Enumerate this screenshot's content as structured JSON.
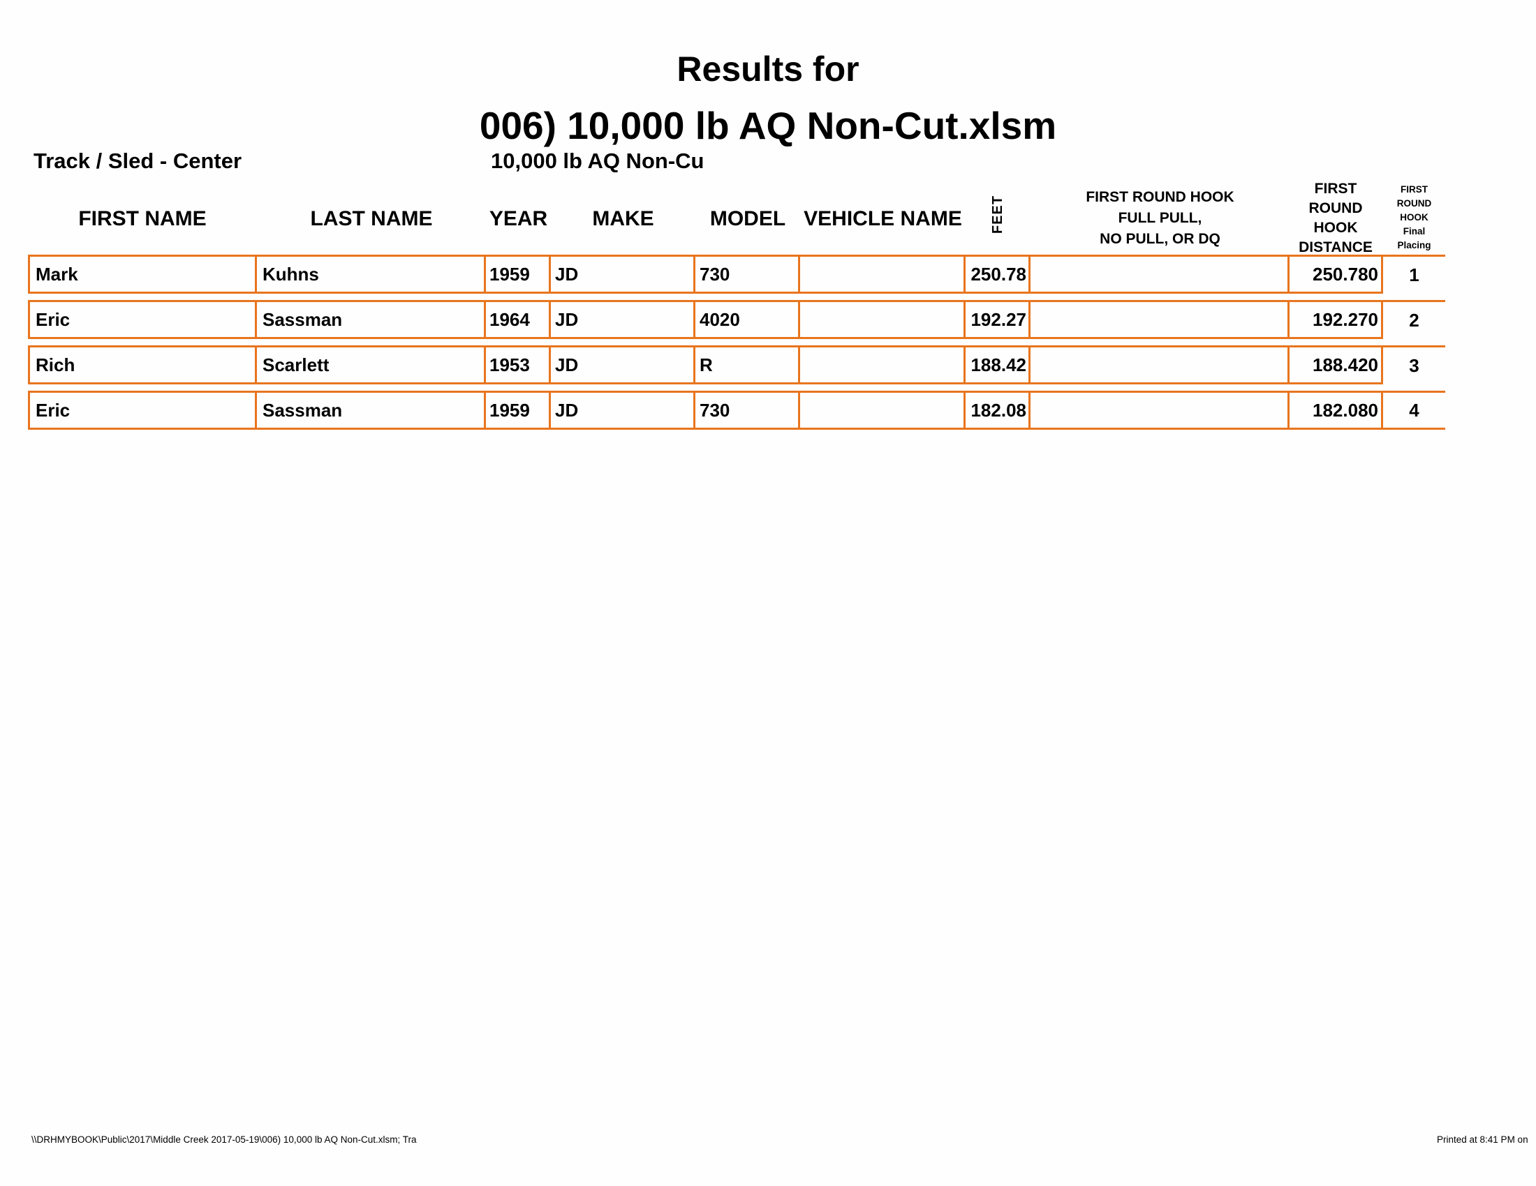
{
  "page": {
    "title_line1": "Results for",
    "title_line2": "006) 10,000 lb AQ Non-Cut.xlsm",
    "track_label": "Track / Sled - Center",
    "class_label": "10,000 lb AQ Non-Cu"
  },
  "colors": {
    "table_border": "#E8751E",
    "text": "#000000"
  },
  "table": {
    "headers": {
      "first_name": "FIRST NAME",
      "last_name": "LAST NAME",
      "year": "YEAR",
      "make": "MAKE",
      "model": "MODEL",
      "vehicle_name": "VEHICLE NAME",
      "feet": "FEET",
      "full_pull_lines": [
        "FIRST ROUND HOOK",
        "FULL PULL,",
        "NO PULL, OR DQ"
      ],
      "distance_lines": [
        "FIRST",
        "ROUND",
        "HOOK",
        "DISTANCE"
      ],
      "placing_lines": [
        "FIRST",
        "ROUND",
        "HOOK",
        "Final",
        "Placing"
      ]
    },
    "rows": [
      {
        "first_name": "Mark",
        "last_name": "Kuhns",
        "year": "1959",
        "make": "JD",
        "model": "730",
        "vehicle_name": "",
        "feet": "250.78",
        "full_pull": "",
        "distance": "250.780",
        "placing": "1"
      },
      {
        "first_name": "Eric",
        "last_name": "Sassman",
        "year": "1964",
        "make": "JD",
        "model": "4020",
        "vehicle_name": "",
        "feet": "192.27",
        "full_pull": "",
        "distance": "192.270",
        "placing": "2"
      },
      {
        "first_name": "Rich",
        "last_name": "Scarlett",
        "year": "1953",
        "make": "JD",
        "model": "R",
        "vehicle_name": "",
        "feet": "188.42",
        "full_pull": "",
        "distance": "188.420",
        "placing": "3"
      },
      {
        "first_name": "Eric",
        "last_name": "Sassman",
        "year": "1959",
        "make": "JD",
        "model": "730",
        "vehicle_name": "",
        "feet": "182.08",
        "full_pull": "",
        "distance": "182.080",
        "placing": "4"
      }
    ]
  },
  "footer": {
    "left": "\\\\DRHMYBOOK\\Public\\2017\\Middle Creek 2017-05-19\\006) 10,000 lb AQ Non-Cut.xlsm;  Tra",
    "right": "Printed at 8:41 PM on"
  }
}
